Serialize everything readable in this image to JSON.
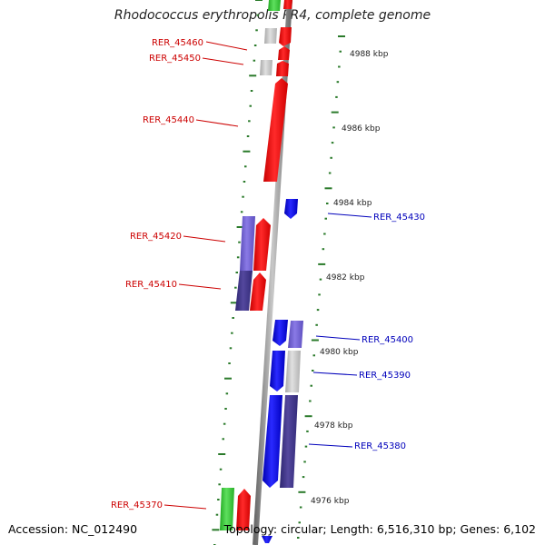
{
  "title": "Rhodococcus erythropolis PR4, complete genome",
  "footer": {
    "accession": "Accession: NC_012490",
    "summary": "Topology: circular; Length: 6,516,310 bp; Genes: 6,102"
  },
  "colors": {
    "forward_gene": "#ff0000",
    "reverse_gene": "#1010e6",
    "purple_gene": "#7a6ad6",
    "dark_purple_gene": "#463c90",
    "grey_gene": "#c4c4c4",
    "green_gene": "#3ec83e",
    "forward_label": "#cc0000",
    "reverse_label": "#0000bb",
    "tick": "#2a7a2a"
  },
  "axis_ticks": [
    {
      "label": "4988 kbp"
    },
    {
      "label": "4986 kbp"
    },
    {
      "label": "4984 kbp"
    },
    {
      "label": "4982 kbp"
    },
    {
      "label": "4980 kbp"
    },
    {
      "label": "4978 kbp"
    },
    {
      "label": "4976 kbp"
    }
  ],
  "gene_labels": [
    {
      "text": "RER_45460",
      "strand": "forward"
    },
    {
      "text": "RER_45450",
      "strand": "forward"
    },
    {
      "text": "RER_45440",
      "strand": "forward"
    },
    {
      "text": "RER_45420",
      "strand": "forward"
    },
    {
      "text": "RER_45410",
      "strand": "forward"
    },
    {
      "text": "RER_45370",
      "strand": "forward"
    },
    {
      "text": "RER_45430",
      "strand": "reverse"
    },
    {
      "text": "RER_45400",
      "strand": "reverse"
    },
    {
      "text": "RER_45390",
      "strand": "reverse"
    },
    {
      "text": "RER_45380",
      "strand": "reverse"
    }
  ]
}
